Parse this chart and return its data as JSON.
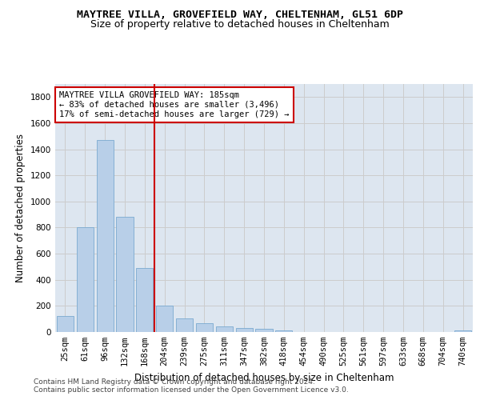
{
  "title": "MAYTREE VILLA, GROVEFIELD WAY, CHELTENHAM, GL51 6DP",
  "subtitle": "Size of property relative to detached houses in Cheltenham",
  "xlabel": "Distribution of detached houses by size in Cheltenham",
  "ylabel": "Number of detached properties",
  "bar_labels": [
    "25sqm",
    "61sqm",
    "96sqm",
    "132sqm",
    "168sqm",
    "204sqm",
    "239sqm",
    "275sqm",
    "311sqm",
    "347sqm",
    "382sqm",
    "418sqm",
    "454sqm",
    "490sqm",
    "525sqm",
    "561sqm",
    "597sqm",
    "633sqm",
    "668sqm",
    "704sqm",
    "740sqm"
  ],
  "bar_values": [
    125,
    800,
    1470,
    880,
    490,
    205,
    105,
    65,
    45,
    32,
    25,
    12,
    0,
    0,
    0,
    0,
    0,
    0,
    0,
    0,
    12
  ],
  "bar_color": "#b8cfe8",
  "bar_edge_color": "#7aaad0",
  "vline_x": 4.5,
  "vline_color": "#cc0000",
  "annotation_text": "MAYTREE VILLA GROVEFIELD WAY: 185sqm\n← 83% of detached houses are smaller (3,496)\n17% of semi-detached houses are larger (729) →",
  "annotation_box_color": "#ffffff",
  "annotation_box_edge_color": "#cc0000",
  "ylim": [
    0,
    1900
  ],
  "yticks": [
    0,
    200,
    400,
    600,
    800,
    1000,
    1200,
    1400,
    1600,
    1800
  ],
  "grid_color": "#cccccc",
  "bg_color": "#dde6f0",
  "footer1": "Contains HM Land Registry data © Crown copyright and database right 2024.",
  "footer2": "Contains public sector information licensed under the Open Government Licence v3.0.",
  "title_fontsize": 9.5,
  "subtitle_fontsize": 9,
  "xlabel_fontsize": 8.5,
  "ylabel_fontsize": 8.5,
  "tick_fontsize": 7.5,
  "annotation_fontsize": 7.5,
  "footer_fontsize": 6.5
}
